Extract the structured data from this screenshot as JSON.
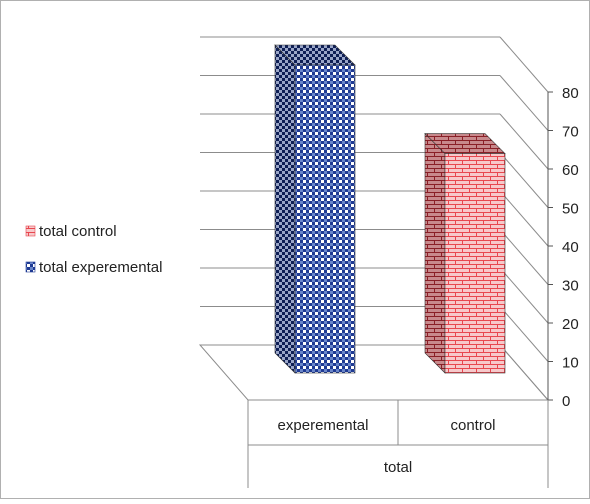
{
  "chart_data": {
    "type": "bar",
    "style": "3d-clustered-column",
    "categories": [
      "experemental",
      "control"
    ],
    "group_label": "total",
    "series": [
      {
        "name": "total experemental",
        "values": [
          80,
          null
        ],
        "color": "#1f3a93",
        "pattern": "checkerboard"
      },
      {
        "name": "total control",
        "values": [
          null,
          57
        ],
        "color": "#e8474f",
        "pattern": "brick"
      }
    ],
    "ylim": [
      0,
      80
    ],
    "y_ticks": [
      0,
      10,
      20,
      30,
      40,
      50,
      60,
      70,
      80
    ],
    "y_axis_position": "right",
    "grid": true,
    "legend_position": "left"
  }
}
